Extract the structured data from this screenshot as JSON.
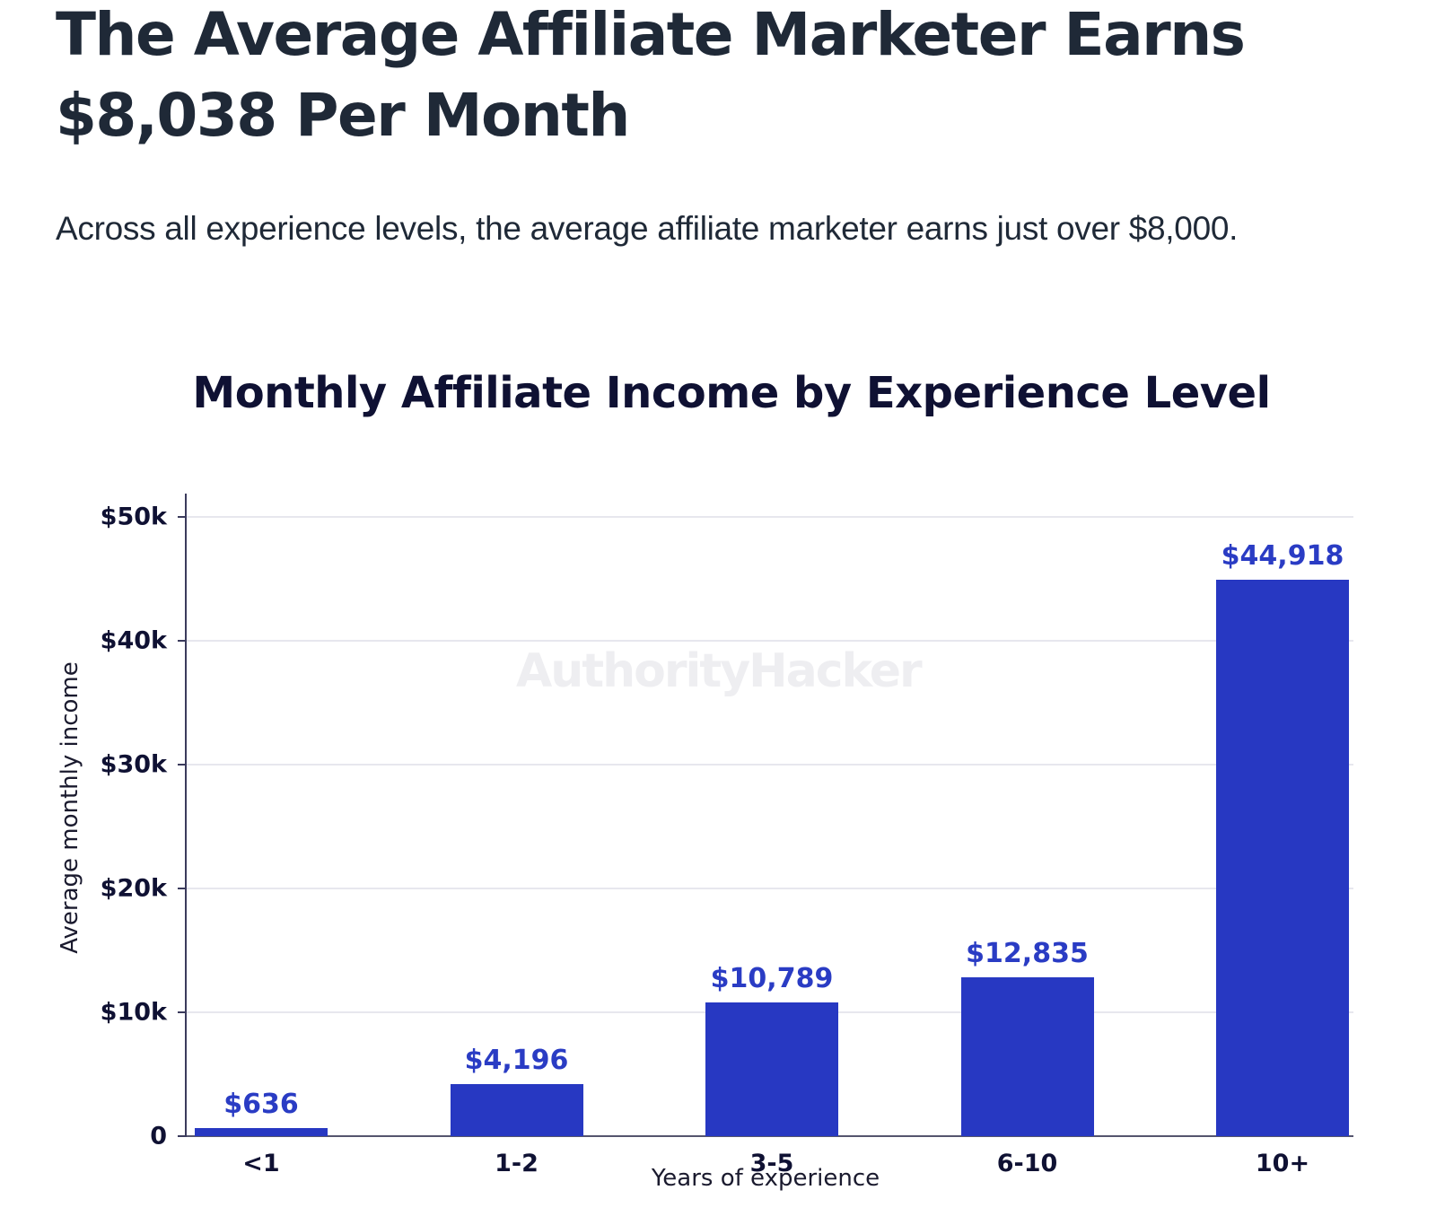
{
  "article": {
    "headline": "The Average Affiliate Marketer Earns $8,038 Per Month",
    "subtitle": "Across all experience levels, the average affiliate marketer earns just over $8,000."
  },
  "watermark": "AuthorityHacker",
  "colors": {
    "bar": "#2738c2",
    "bar_label": "#2a3cc4",
    "text_dark": "#0f1133",
    "gridline": "#e7e7ee"
  },
  "chart_data": {
    "type": "bar",
    "title": "Monthly Affiliate Income by Experience Level",
    "xlabel": "Years of experience",
    "ylabel": "Average monthly income",
    "categories": [
      "<1",
      "1-2",
      "3-5",
      "6-10",
      "10+"
    ],
    "values": [
      636,
      4196,
      10789,
      12835,
      44918
    ],
    "value_labels": [
      "$636",
      "$4,196",
      "$10,789",
      "$12,835",
      "$44,918"
    ],
    "ylim": [
      0,
      50000
    ],
    "yticks": [
      0,
      10000,
      20000,
      30000,
      40000,
      50000
    ],
    "ytick_labels": [
      "0",
      "$10k",
      "$20k",
      "$30k",
      "$40k",
      "$50k"
    ],
    "grid": true,
    "legend": "none"
  }
}
